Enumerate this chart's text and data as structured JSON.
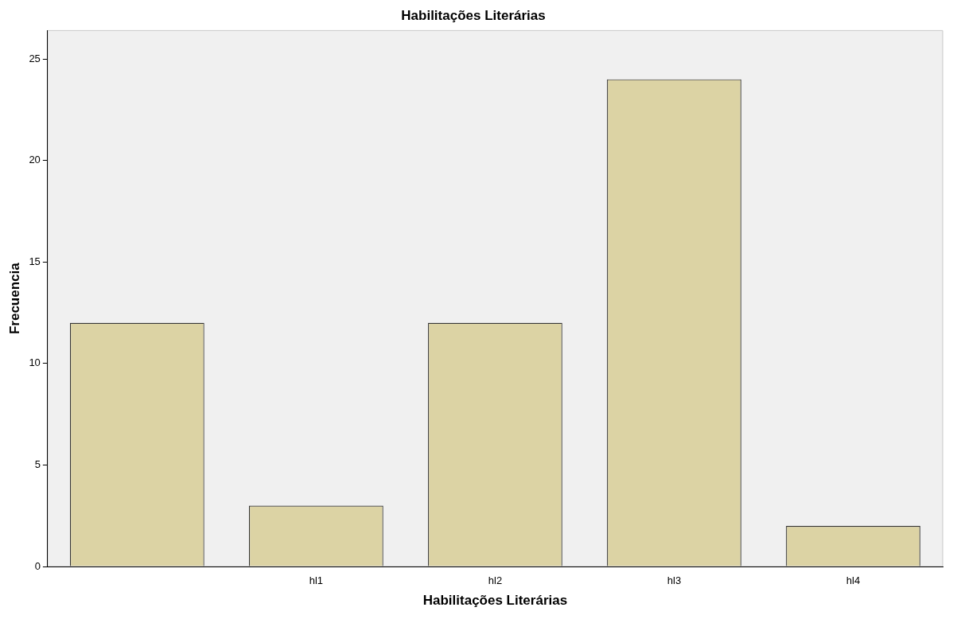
{
  "chart_data": {
    "type": "bar",
    "title": "Habilitações Literárias",
    "xlabel": "Habilitações Literárias",
    "ylabel": "Frecuencia",
    "categories": [
      null,
      "hl1",
      "hl2",
      "hl3",
      "hl4"
    ],
    "values": [
      12,
      3,
      12,
      24,
      2
    ],
    "color": "#dcd3a4",
    "ylim": [
      0,
      26.4
    ],
    "yticks": [
      0,
      5,
      10,
      15,
      20,
      25
    ],
    "grid": false,
    "legend": false
  }
}
